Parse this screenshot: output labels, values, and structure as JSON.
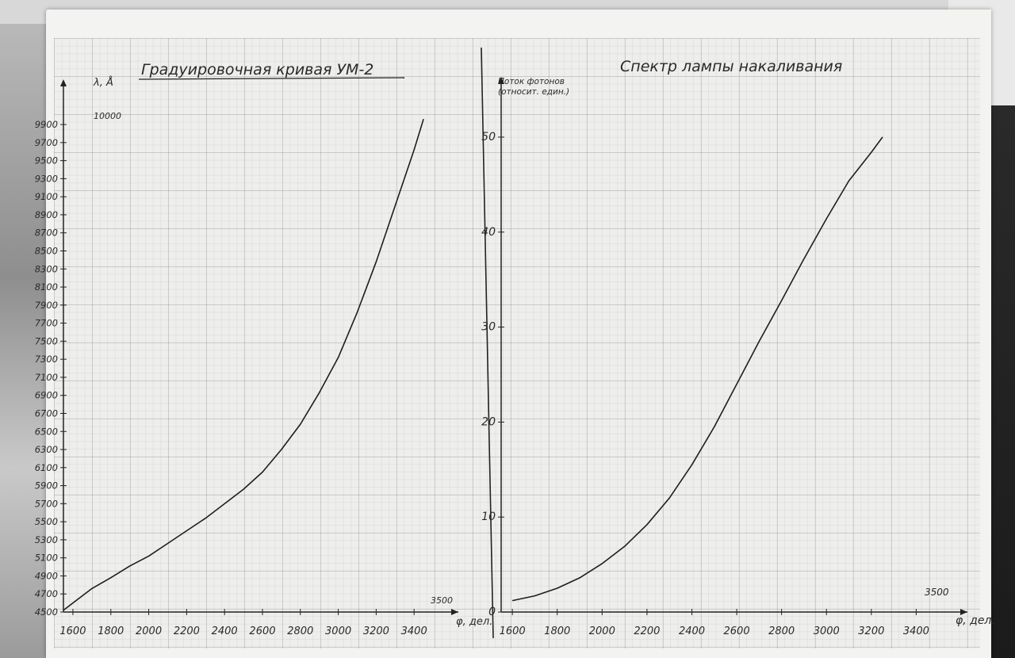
{
  "chart_data": [
    {
      "type": "line",
      "title": "Градуировочная кривая УМ-2",
      "ylabel": "λ, Å",
      "xlabel": "φ, дел.",
      "x_ticks": [
        "1600",
        "1800",
        "2000",
        "2200",
        "2400",
        "2600",
        "2800",
        "3000",
        "3200",
        "3400"
      ],
      "x_extra_label": "3500",
      "y_ticks": [
        "4500",
        "4700",
        "4900",
        "5100",
        "5300",
        "5500",
        "5700",
        "5900",
        "6100",
        "6300",
        "6500",
        "6700",
        "6900",
        "7100",
        "7300",
        "7500",
        "7700",
        "7900",
        "8100",
        "8300",
        "8500",
        "8700",
        "8900",
        "9100",
        "9300",
        "9500",
        "9700",
        "9900"
      ],
      "y_extra_label": "10000",
      "xlim": [
        1550,
        3600
      ],
      "ylim": [
        4500,
        10050
      ],
      "grid": true,
      "series": [
        {
          "x": [
            1550,
            1700,
            1800,
            1900,
            2000,
            2100,
            2200,
            2300,
            2400,
            2500,
            2600,
            2700,
            2800,
            2900,
            3000,
            3100,
            3200,
            3300,
            3400,
            3450
          ],
          "y": [
            4520,
            4760,
            4880,
            5010,
            5120,
            5260,
            5400,
            5540,
            5700,
            5860,
            6050,
            6300,
            6580,
            6930,
            7320,
            7820,
            8380,
            9000,
            9620,
            9960
          ]
        }
      ]
    },
    {
      "type": "line",
      "title": "Спектр лампы накаливания",
      "ylabel": "Поток фотонов (относит. един.)",
      "xlabel": "φ, дел.",
      "x_ticks": [
        "1600",
        "1800",
        "2000",
        "2200",
        "2400",
        "2600",
        "2800",
        "3000",
        "3200",
        "3400"
      ],
      "x_extra_label": "3500",
      "y_ticks": [
        "0",
        "10",
        "20",
        "30",
        "40",
        "50"
      ],
      "xlim": [
        1550,
        3600
      ],
      "ylim": [
        0,
        53
      ],
      "grid": true,
      "series": [
        {
          "x": [
            1600,
            1700,
            1800,
            1900,
            2000,
            2100,
            2200,
            2300,
            2400,
            2500,
            2600,
            2700,
            2800,
            2900,
            3000,
            3100,
            3200,
            3250
          ],
          "y": [
            1.2,
            1.7,
            2.5,
            3.6,
            5.1,
            6.9,
            9.2,
            12.0,
            15.5,
            19.5,
            24.0,
            28.5,
            32.8,
            37.2,
            41.4,
            45.4,
            48.4,
            50.0
          ]
        }
      ]
    }
  ]
}
